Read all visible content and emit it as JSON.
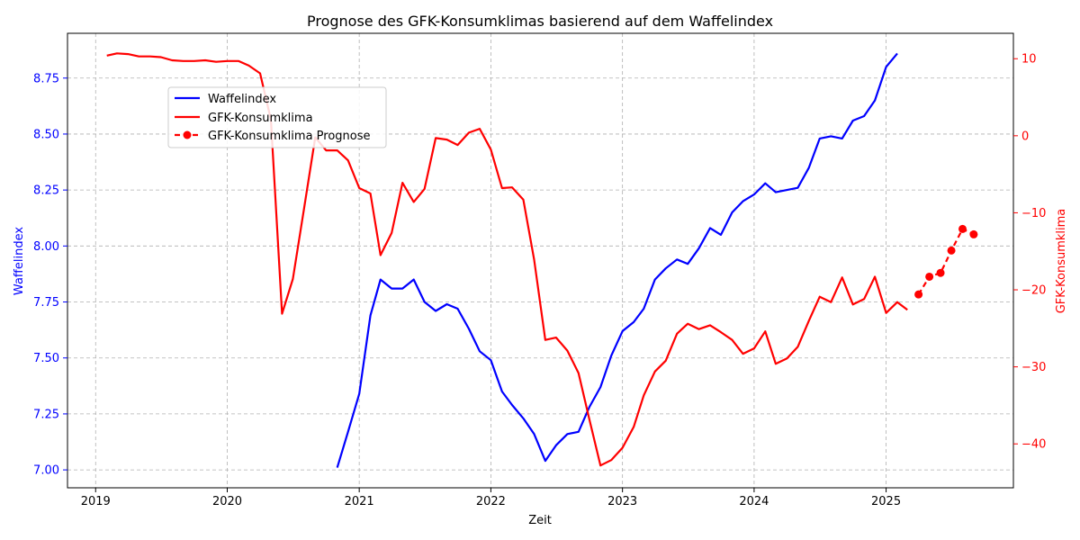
{
  "chart_data": {
    "type": "line",
    "title": "Prognose des GFK-Konsumklimas basierend auf dem Waffelindex",
    "xlabel": "Zeit",
    "ylabel_left": "Waffelindex",
    "ylabel_right": "GFK-Konsumklima",
    "xlim": [
      "2018-10-15",
      "2025-12-20"
    ],
    "ylim_left": [
      6.92,
      8.95
    ],
    "ylim_right": [
      -45.7,
      13.3
    ],
    "x_ticks": [
      "2019",
      "2020",
      "2021",
      "2022",
      "2023",
      "2024",
      "2025"
    ],
    "y_ticks_left": [
      "7.00",
      "7.25",
      "7.50",
      "7.75",
      "8.00",
      "8.25",
      "8.50",
      "8.75"
    ],
    "y_ticks_right": [
      "10",
      "0",
      "−10",
      "−20",
      "−30",
      "−40"
    ],
    "grid": true,
    "legend_position": "upper-left",
    "colors": {
      "waffelindex": "#0000ff",
      "gfk": "#ff0000",
      "grid": "#b0b0b0"
    },
    "series": [
      {
        "name": "Waffelindex",
        "axis": "left",
        "style": "solid",
        "x": [
          "2020-11",
          "2020-12",
          "2021-01",
          "2021-02",
          "2021-03",
          "2021-04",
          "2021-05",
          "2021-06",
          "2021-07",
          "2021-08",
          "2021-09",
          "2021-10",
          "2021-11",
          "2021-12",
          "2022-01",
          "2022-02",
          "2022-03",
          "2022-04",
          "2022-05",
          "2022-06",
          "2022-07",
          "2022-08",
          "2022-09",
          "2022-10",
          "2022-11",
          "2022-12",
          "2023-01",
          "2023-02",
          "2023-03",
          "2023-04",
          "2023-05",
          "2023-06",
          "2023-07",
          "2023-08",
          "2023-09",
          "2023-10",
          "2023-11",
          "2023-12",
          "2024-01",
          "2024-02",
          "2024-03",
          "2024-04",
          "2024-05",
          "2024-06",
          "2024-07",
          "2024-08",
          "2024-09",
          "2024-10",
          "2024-11",
          "2024-12",
          "2025-01",
          "2025-02"
        ],
        "values": [
          7.01,
          7.17,
          7.34,
          7.69,
          7.85,
          7.81,
          7.81,
          7.85,
          7.75,
          7.71,
          7.74,
          7.72,
          7.63,
          7.53,
          7.49,
          7.35,
          7.29,
          7.23,
          7.16,
          7.04,
          7.11,
          7.16,
          7.17,
          7.28,
          7.37,
          7.51,
          7.62,
          7.66,
          7.72,
          7.85,
          7.9,
          7.94,
          7.92,
          7.99,
          8.08,
          8.05,
          8.15,
          8.2,
          8.23,
          8.28,
          8.24,
          8.25,
          8.26,
          8.35,
          8.48,
          8.49,
          8.48,
          8.56,
          8.58,
          8.65,
          8.8,
          8.86
        ]
      },
      {
        "name": "GFK-Konsumklima",
        "axis": "right",
        "style": "solid",
        "x": [
          "2019-02",
          "2019-03",
          "2019-04",
          "2019-05",
          "2019-06",
          "2019-07",
          "2019-08",
          "2019-09",
          "2019-10",
          "2019-11",
          "2019-12",
          "2020-01",
          "2020-02",
          "2020-03",
          "2020-04",
          "2020-05",
          "2020-06",
          "2020-07",
          "2020-08",
          "2020-09",
          "2020-10",
          "2020-11",
          "2020-12",
          "2021-01",
          "2021-02",
          "2021-03",
          "2021-04",
          "2021-05",
          "2021-06",
          "2021-07",
          "2021-08",
          "2021-09",
          "2021-10",
          "2021-11",
          "2021-12",
          "2022-01",
          "2022-02",
          "2022-03",
          "2022-04",
          "2022-05",
          "2022-06",
          "2022-07",
          "2022-08",
          "2022-09",
          "2022-10",
          "2022-11",
          "2022-12",
          "2023-01",
          "2023-02",
          "2023-03",
          "2023-04",
          "2023-05",
          "2023-06",
          "2023-07",
          "2023-08",
          "2023-09",
          "2023-10",
          "2023-11",
          "2023-12",
          "2024-01",
          "2024-02",
          "2024-03",
          "2024-04",
          "2024-05",
          "2024-06",
          "2024-07",
          "2024-08",
          "2024-09",
          "2024-10",
          "2024-11",
          "2024-12",
          "2025-01",
          "2025-02",
          "2025-03"
        ],
        "values": [
          10.4,
          10.7,
          10.6,
          10.3,
          10.3,
          10.2,
          9.8,
          9.7,
          9.7,
          9.8,
          9.6,
          9.7,
          9.7,
          9.1,
          8.1,
          2.1,
          -23.1,
          -18.6,
          -9.4,
          -0.2,
          -1.9,
          -1.9,
          -3.2,
          -6.8,
          -7.5,
          -15.5,
          -12.6,
          -6.1,
          -8.6,
          -6.9,
          -0.3,
          -0.5,
          -1.2,
          0.4,
          0.9,
          -1.8,
          -6.8,
          -6.7,
          -8.3,
          -16.1,
          -26.5,
          -26.2,
          -27.9,
          -30.8,
          -36.8,
          -42.8,
          -42.1,
          -40.5,
          -37.8,
          -33.7,
          -30.6,
          -29.2,
          -25.7,
          -24.4,
          -25.1,
          -24.6,
          -25.5,
          -26.5,
          -28.3,
          -27.6,
          -25.4,
          -29.6,
          -28.9,
          -27.4,
          -24.0,
          -20.9,
          -21.6,
          -18.4,
          -21.9,
          -21.2,
          -18.3,
          -23.0,
          -21.6,
          -22.6
        ]
      },
      {
        "name": "GFK-Konsumklima Prognose",
        "axis": "right",
        "style": "dashed-markers",
        "x": [
          "2025-04",
          "2025-05",
          "2025-06",
          "2025-07",
          "2025-08",
          "2025-09"
        ],
        "values": [
          -20.6,
          -18.3,
          -17.8,
          -14.9,
          -12.1,
          -12.8
        ]
      }
    ]
  }
}
